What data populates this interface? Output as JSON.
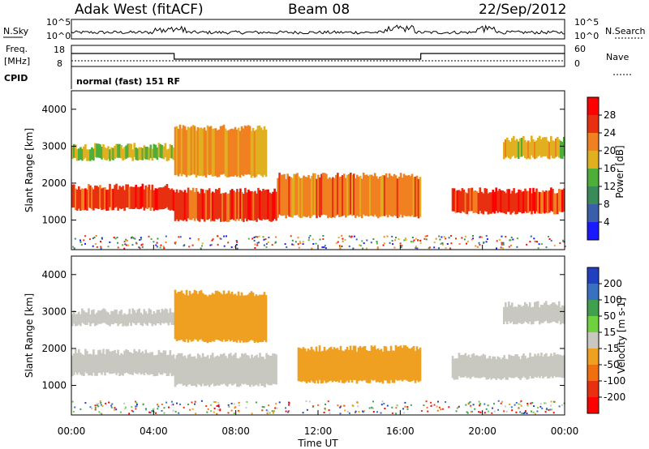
{
  "header": {
    "station": "Adak West (fitACF)",
    "beam": "Beam 08",
    "date": "22/Sep/2012"
  },
  "noise_panel": {
    "left_label": "N.Sky",
    "right_label": "N.Search",
    "left_ticks": [
      "10^5",
      "10^0"
    ],
    "right_ticks": [
      "10^5",
      "10^0"
    ]
  },
  "freq_panel": {
    "left_label_top": "Freq.",
    "left_label_bottom": "[MHz]",
    "cpid_label": "CPID",
    "right_label": "Nave",
    "left_ticks": [
      "18",
      "8"
    ],
    "right_ticks": [
      "60",
      "0"
    ],
    "cpid_text": "normal (fast) 151 RF"
  },
  "chart_data": [
    {
      "type": "heatmap",
      "name": "power",
      "ylabel": "Slant Range [km]",
      "ylim": [
        200,
        4500
      ],
      "yticks": [
        "1000",
        "2000",
        "3000",
        "4000"
      ],
      "colorbar_label": "Power [dB]",
      "colorbar_ticks": [
        "4",
        "8",
        "12",
        "16",
        "20",
        "24",
        "28"
      ],
      "colors": [
        "#1a1aff",
        "#3a5fa8",
        "#3a8a5a",
        "#4fae3a",
        "#e0b020",
        "#f08020",
        "#e83010",
        "#ff0000"
      ],
      "echo_bands": [
        {
          "t": [
            0.0,
            5.0
          ],
          "range": [
            1300,
            1900
          ],
          "level": 26
        },
        {
          "t": [
            0.0,
            5.0
          ],
          "range": [
            2650,
            3000
          ],
          "level": 16
        },
        {
          "t": [
            5.0,
            9.5
          ],
          "range": [
            2200,
            3500
          ],
          "level": 20
        },
        {
          "t": [
            5.0,
            10.0
          ],
          "range": [
            1000,
            1800
          ],
          "level": 26
        },
        {
          "t": [
            10.0,
            17.0
          ],
          "range": [
            1100,
            2200
          ],
          "level": 22
        },
        {
          "t": [
            18.5,
            24.0
          ],
          "range": [
            1200,
            1800
          ],
          "level": 26
        },
        {
          "t": [
            21.0,
            24.0
          ],
          "range": [
            2700,
            3200
          ],
          "level": 18
        }
      ]
    },
    {
      "type": "heatmap",
      "name": "velocity",
      "xlabel": "Time UT",
      "ylabel": "Slant Range [km]",
      "ylim": [
        200,
        4500
      ],
      "yticks": [
        "1000",
        "2000",
        "3000",
        "4000"
      ],
      "xticks": [
        "00:00",
        "04:00",
        "08:00",
        "12:00",
        "16:00",
        "20:00",
        "00:00"
      ],
      "colorbar_label": "Velocity [m s-1]",
      "colorbar_ticks": [
        "200",
        "100",
        "50",
        "15",
        "-15",
        "-50",
        "-100",
        "-200"
      ],
      "colors": [
        "#2040c0",
        "#3a70c0",
        "#40a050",
        "#6fd040",
        "#c8c8c0",
        "#f0a020",
        "#f07010",
        "#e83010",
        "#ff0000"
      ],
      "echo_bands": [
        {
          "t": [
            0.0,
            5.0
          ],
          "range": [
            1300,
            1900
          ],
          "level": 0
        },
        {
          "t": [
            0.0,
            5.0
          ],
          "range": [
            2650,
            3000
          ],
          "level": 0
        },
        {
          "t": [
            5.0,
            9.5
          ],
          "range": [
            2200,
            3500
          ],
          "level": -40
        },
        {
          "t": [
            5.0,
            10.0
          ],
          "range": [
            1000,
            1800
          ],
          "level": 0
        },
        {
          "t": [
            11.0,
            17.0
          ],
          "range": [
            1100,
            2000
          ],
          "level": -40
        },
        {
          "t": [
            18.5,
            24.0
          ],
          "range": [
            1200,
            1800
          ],
          "level": 0
        },
        {
          "t": [
            21.0,
            24.0
          ],
          "range": [
            2700,
            3200
          ],
          "level": 0
        }
      ]
    }
  ]
}
